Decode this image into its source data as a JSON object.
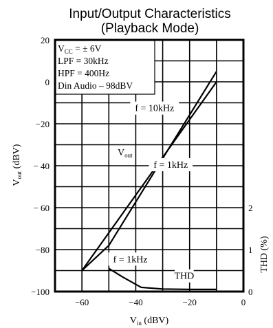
{
  "chart_data": {
    "type": "line",
    "title": "Input/Output Characteristics",
    "subtitle": "(Playback Mode)",
    "xlabel_main": "V",
    "xlabel_sub": "in",
    "xlabel_unit": " (dBV)",
    "ylabel_main": "V",
    "ylabel_sub": "out",
    "ylabel_unit": " (dBV)",
    "y2label": "THD (%)",
    "xlim": [
      -70,
      0
    ],
    "ylim": [
      -100,
      20
    ],
    "y2lim": [
      0,
      2
    ],
    "grid": true,
    "x_ticks": [
      "−60",
      "−40",
      "−20",
      "0"
    ],
    "x_tick_values": [
      -60,
      -40,
      -20,
      0
    ],
    "y_ticks": [
      "20",
      "0",
      "−20",
      "− 40",
      "− 60",
      "−80",
      "−100"
    ],
    "y_tick_values": [
      20,
      0,
      -20,
      -40,
      -60,
      -80,
      -100
    ],
    "y2_ticks": [
      "2",
      "1",
      "0"
    ],
    "y2_tick_values": [
      2,
      1,
      0
    ],
    "conditions": [
      {
        "main": "V",
        "sub": "CC",
        "rest": " = ± 6V"
      },
      {
        "main": "LPF = 30kHz",
        "sub": "",
        "rest": ""
      },
      {
        "main": "HPF = 400Hz",
        "sub": "",
        "rest": ""
      },
      {
        "main": "Din Audio – 98dBV",
        "sub": "",
        "rest": ""
      }
    ],
    "series": [
      {
        "name": "f = 10kHz",
        "axis": "left",
        "x": [
          -60,
          -50,
          -10
        ],
        "y": [
          -90,
          -78,
          5
        ]
      },
      {
        "name": "f = 1kHz",
        "axis": "left",
        "x": [
          -60,
          -10
        ],
        "y": [
          -90,
          0
        ]
      },
      {
        "name": "THD",
        "axis": "right",
        "x": [
          -50,
          -45,
          -38,
          -30,
          -20,
          -10
        ],
        "y": [
          0.55,
          0.35,
          0.1,
          0.06,
          0.05,
          0.05
        ]
      }
    ],
    "annotations": [
      {
        "id": "f10k",
        "text": "f = 10kHz",
        "x": -33,
        "y": -14
      },
      {
        "id": "vout-main",
        "text": "V",
        "sub": "out",
        "x": -44,
        "y": -35
      },
      {
        "id": "f1k-out",
        "text": "f = 1kHz",
        "x": -27,
        "y": -41
      },
      {
        "id": "f1k-thd",
        "text": "f = 1kHz",
        "x": -42,
        "y": -86
      },
      {
        "id": "thd",
        "text": "THD",
        "x": -22,
        "y": -94
      }
    ]
  }
}
